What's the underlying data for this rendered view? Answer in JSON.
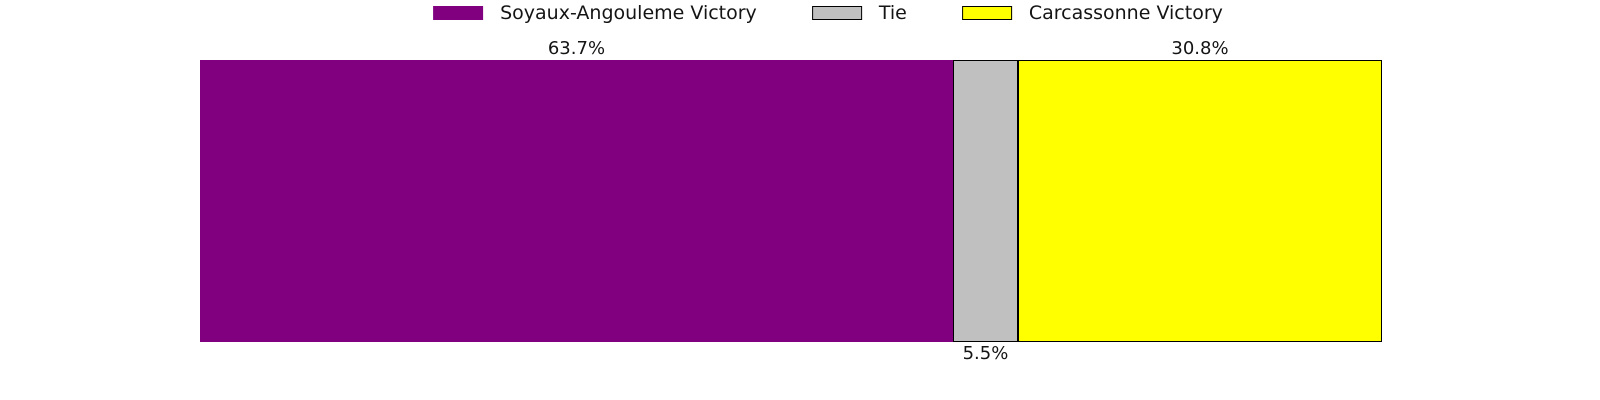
{
  "chart_data": {
    "type": "bar",
    "orientation": "horizontal",
    "stacked": true,
    "unit": "%",
    "xlim": [
      0,
      100
    ],
    "grid": false,
    "legend_position": "top-center",
    "background_color": "#ffffff",
    "text_color": "#141414",
    "series": [
      {
        "name": "Soyaux-Angouleme Victory",
        "value": 63.7,
        "label": "63.7%",
        "label_position": "above",
        "color": "#800080",
        "edge_color": "none"
      },
      {
        "name": "Tie",
        "value": 5.5,
        "label": "5.5%",
        "label_position": "below",
        "color": "#c0c0c0",
        "edge_color": "#000000"
      },
      {
        "name": "Carcassonne Victory",
        "value": 30.8,
        "label": "30.8%",
        "label_position": "above",
        "color": "#ffff00",
        "edge_color": "#000000"
      }
    ]
  }
}
